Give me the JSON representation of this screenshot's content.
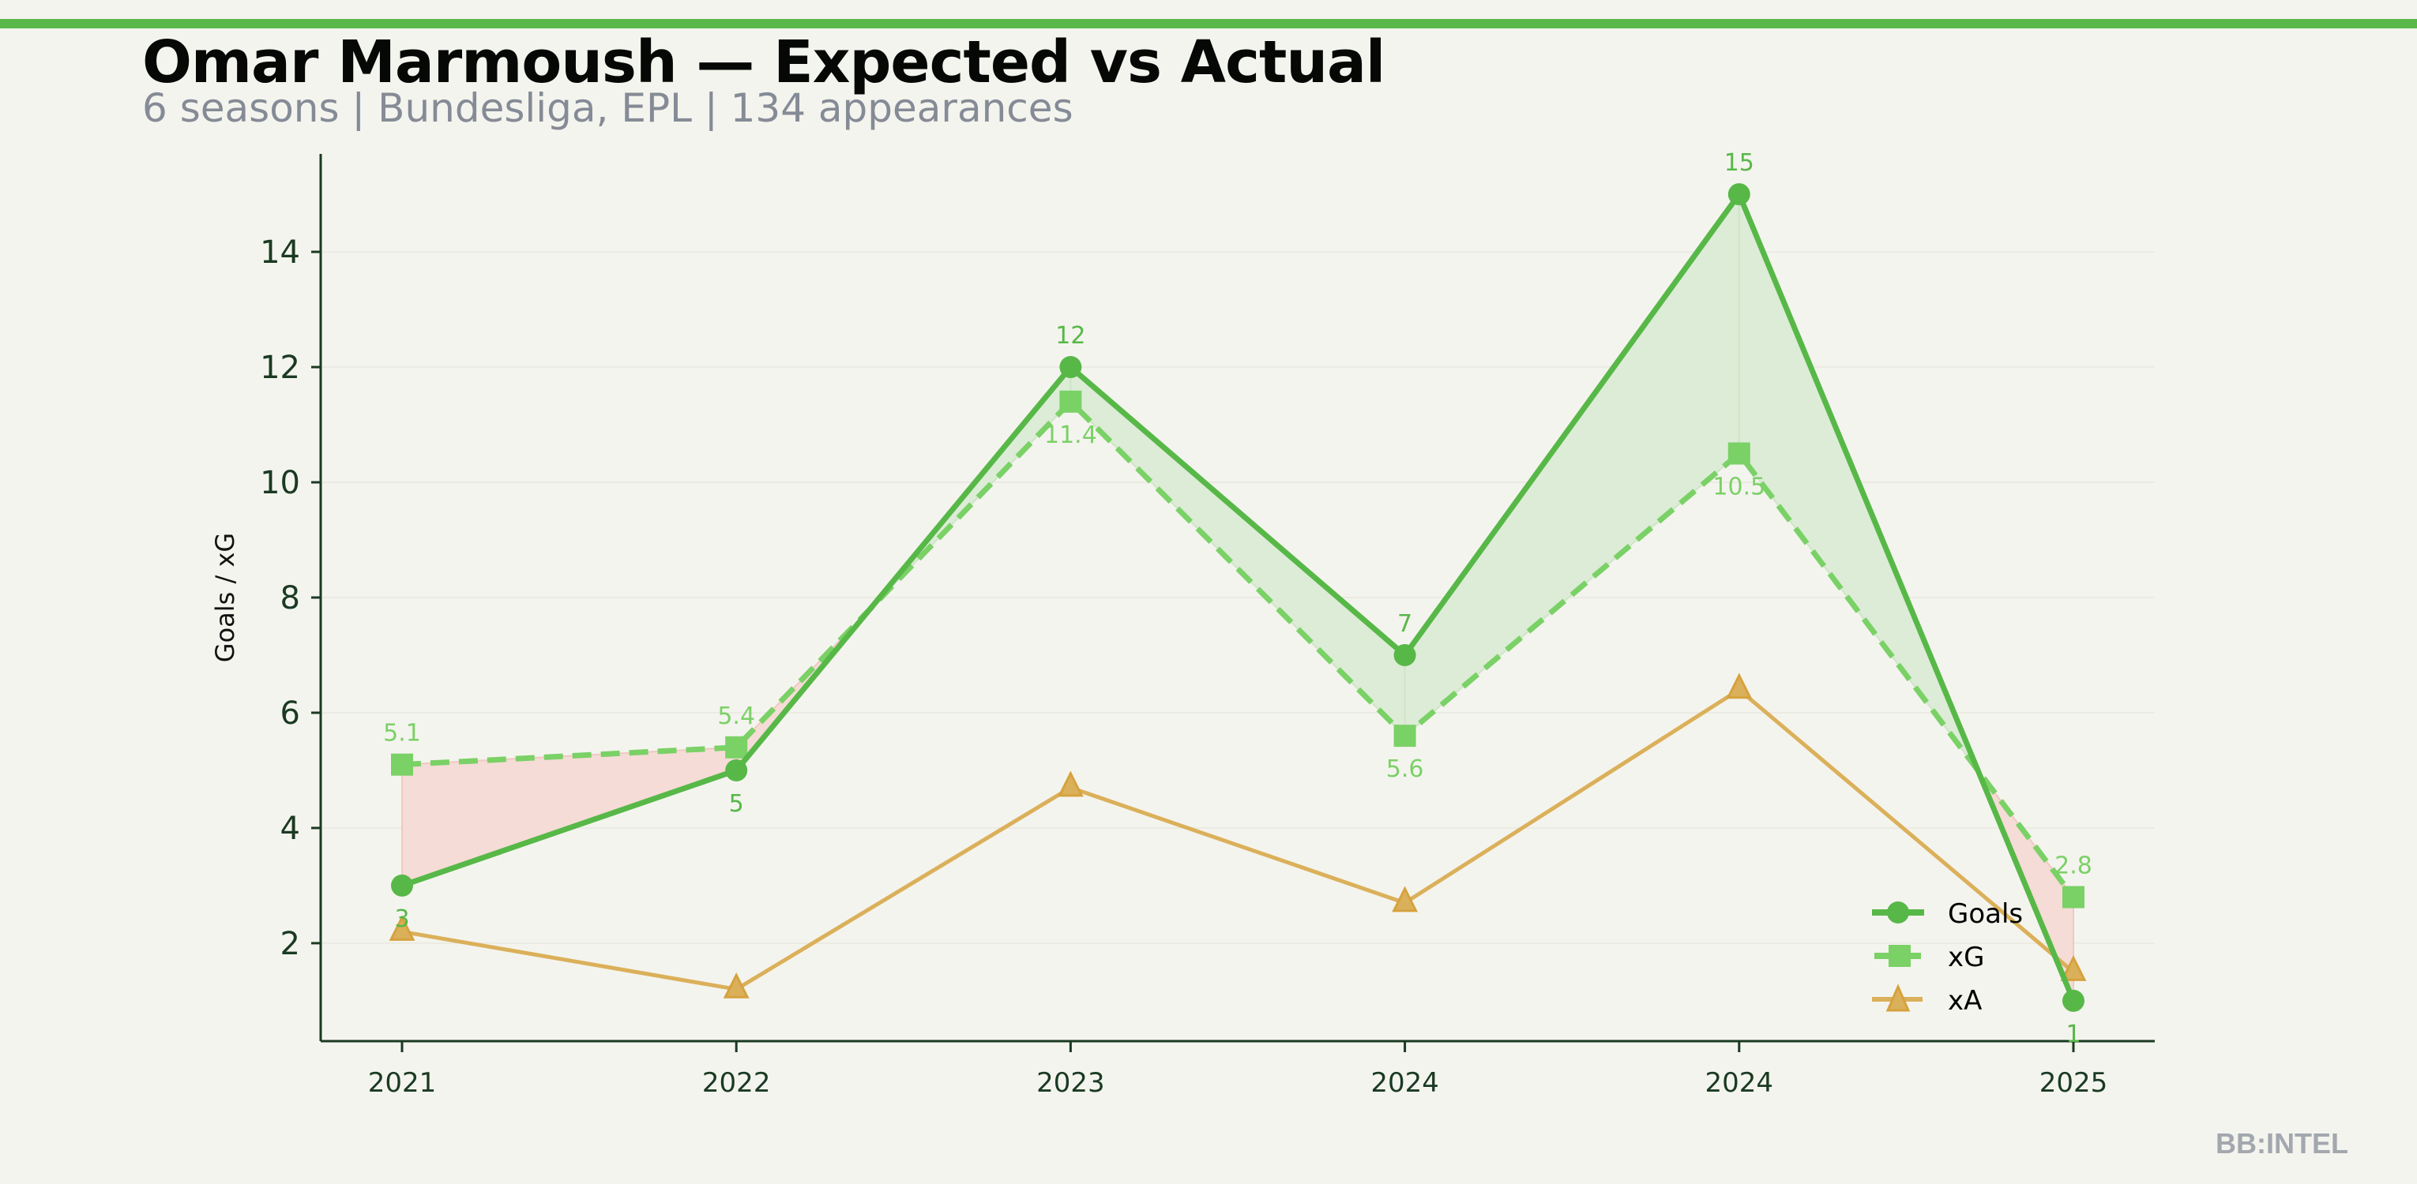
{
  "header": {
    "title": "Omar Marmoush — Expected vs Actual",
    "subtitle": "6 seasons | Bundesliga, EPL | 134 appearances"
  },
  "watermark": "BB:INTEL",
  "colors": {
    "goals": "#57b848",
    "xg": "#7ad166",
    "xa": "#dbb05a",
    "over": "#dcecd6",
    "under": "#f5dcd6",
    "axis": "#1a3a22",
    "accent": "#5ab84a"
  },
  "chart_data": {
    "type": "line",
    "title": "Omar Marmoush — Expected vs Actual",
    "xlabel": "",
    "ylabel": "Goals / xG",
    "categories": [
      "2021",
      "2022",
      "2023",
      "2024",
      "2024",
      "2025"
    ],
    "ylim": [
      0.3,
      15.7
    ],
    "yticks": [
      2,
      4,
      6,
      8,
      10,
      12,
      14
    ],
    "grid": true,
    "legend_position": "bottom-right",
    "series": [
      {
        "name": "Goals",
        "values": [
          3,
          5,
          12,
          7,
          15,
          1
        ],
        "labels": [
          "3",
          "5",
          "12",
          "7",
          "15",
          "1"
        ]
      },
      {
        "name": "xG",
        "values": [
          5.1,
          5.4,
          11.4,
          5.6,
          10.5,
          2.8
        ],
        "labels": [
          "5.1",
          "5.4",
          "11.4",
          "5.6",
          "10.5",
          "2.8"
        ]
      },
      {
        "name": "xA",
        "values": [
          2.2,
          1.2,
          4.7,
          2.7,
          6.4,
          1.5
        ]
      }
    ]
  }
}
